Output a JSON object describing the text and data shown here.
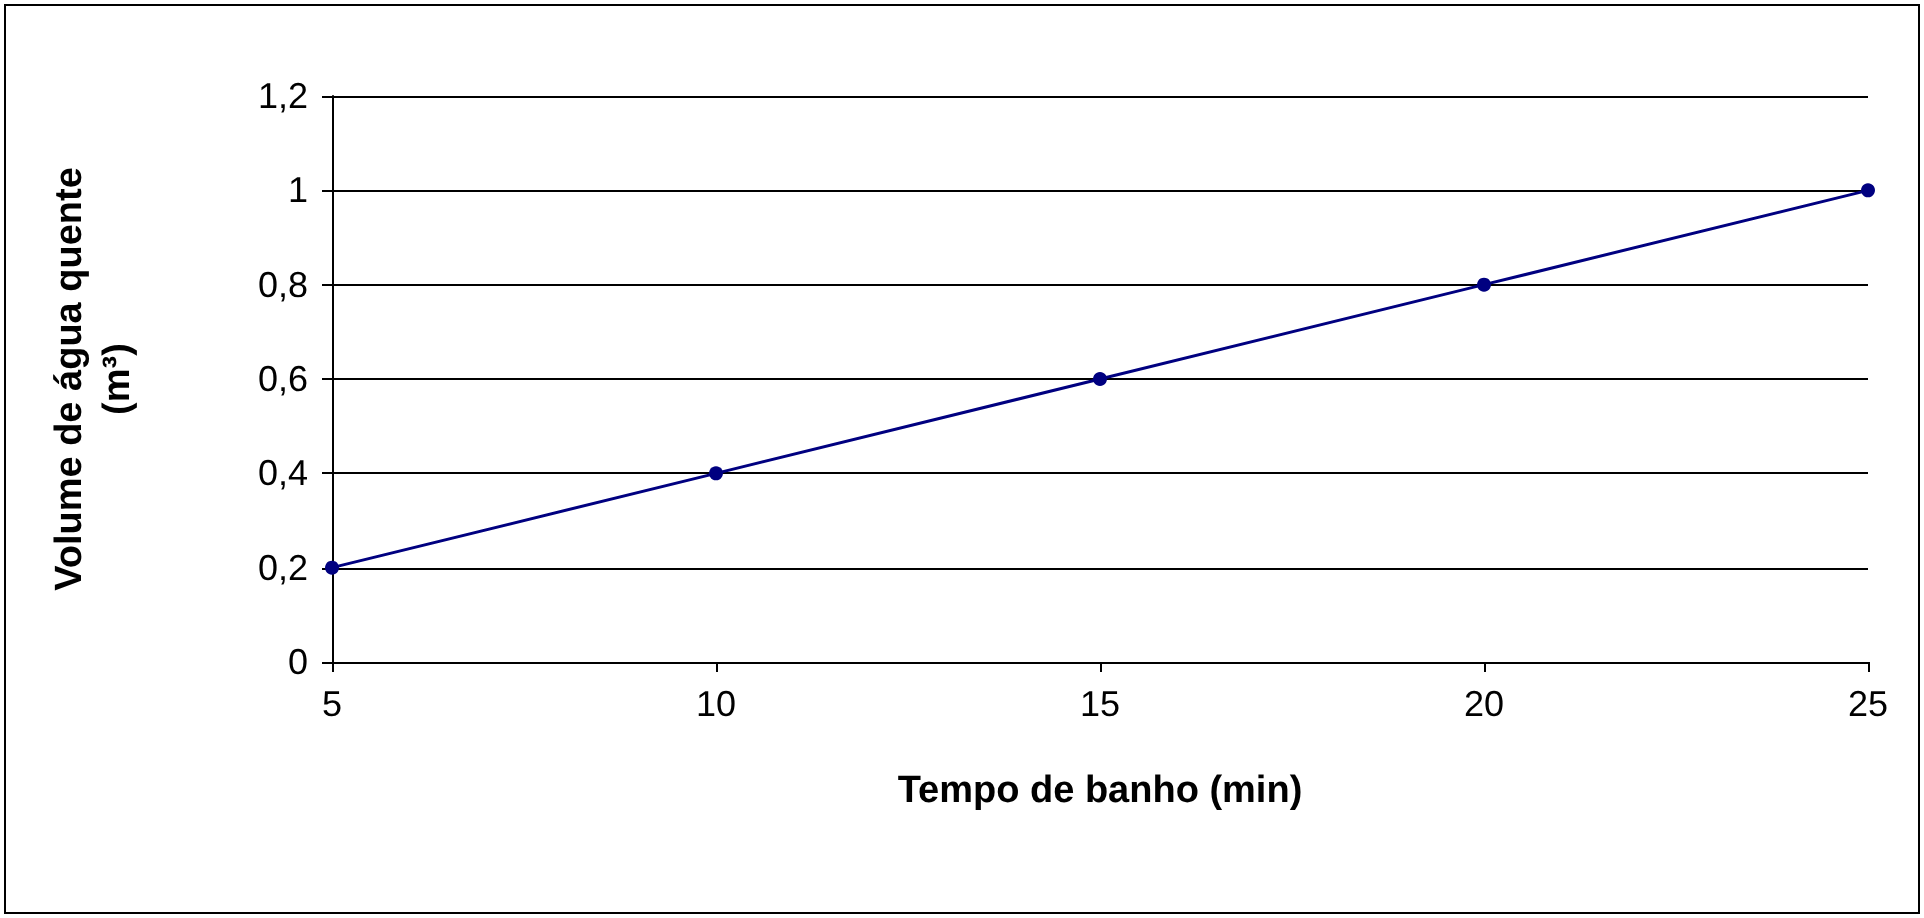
{
  "chart_data": {
    "type": "line",
    "xlabel": "Tempo de banho (min)",
    "ylabel": "Volume de água quente\n(m³)",
    "x": [
      5,
      10,
      15,
      20,
      25
    ],
    "series": [
      {
        "color": "#000080",
        "values": [
          0.2,
          0.4,
          0.6,
          0.8,
          1.0
        ]
      }
    ],
    "xlim": [
      5,
      25
    ],
    "xticks": [
      5,
      10,
      15,
      20,
      25
    ],
    "ylim": [
      0,
      1.2
    ],
    "yticks": [
      0,
      {
        "value": 0.2,
        "label": "0,2"
      },
      {
        "value": 0.4,
        "label": "0,4"
      },
      {
        "value": 0.6,
        "label": "0,6"
      },
      {
        "value": 0.8,
        "label": "0,8"
      },
      1,
      {
        "value": 1.2,
        "label": "1,2"
      }
    ],
    "grid": "y",
    "marker": "circle",
    "line_style": "solid"
  }
}
